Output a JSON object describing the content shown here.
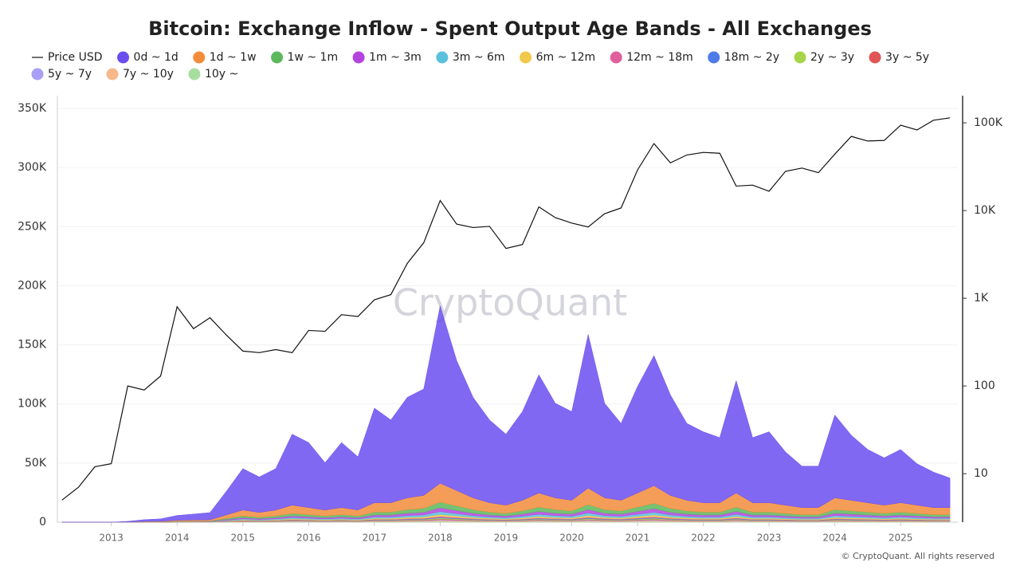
{
  "chart_data": {
    "type": "area",
    "title": "Bitcoin: Exchange Inflow - Spent Output Age Bands - All Exchanges",
    "watermark": "CryptoQuant",
    "credit": "© CryptoQuant. All rights reserved",
    "x": [
      2012.25,
      2012.5,
      2012.75,
      2013,
      2013.25,
      2013.5,
      2013.75,
      2014,
      2014.25,
      2014.5,
      2014.75,
      2015,
      2015.25,
      2015.5,
      2015.75,
      2016,
      2016.25,
      2016.5,
      2016.75,
      2017,
      2017.25,
      2017.5,
      2017.75,
      2018,
      2018.25,
      2018.5,
      2018.75,
      2019,
      2019.25,
      2019.5,
      2019.75,
      2020,
      2020.25,
      2020.5,
      2020.75,
      2021,
      2021.25,
      2021.5,
      2021.75,
      2022,
      2022.25,
      2022.5,
      2022.75,
      2023,
      2023.25,
      2023.5,
      2023.75,
      2024,
      2024.25,
      2024.5,
      2024.75,
      2025,
      2025.25,
      2025.5,
      2025.75
    ],
    "xlim": [
      2012.18,
      2025.87
    ],
    "xticks": [
      2013,
      2014,
      2015,
      2016,
      2017,
      2018,
      2019,
      2020,
      2021,
      2022,
      2023,
      2024,
      2025
    ],
    "ylim": [
      0,
      360800
    ],
    "yticks": [
      0,
      {
        "value": 50000,
        "label": "50K"
      },
      {
        "value": 100000,
        "label": "100K"
      },
      {
        "value": 150000,
        "label": "150K"
      },
      {
        "value": 200000,
        "label": "200K"
      },
      {
        "value": 250000,
        "label": "250K"
      },
      {
        "value": 300000,
        "label": "300K"
      },
      {
        "value": 350000,
        "label": "350K"
      }
    ],
    "y2lim": [
      2.8,
      204000
    ],
    "y2ticks": [
      10,
      100,
      {
        "value": 1000,
        "label": "1K"
      },
      {
        "value": 10000,
        "label": "10K"
      },
      {
        "value": 100000,
        "label": "100K"
      }
    ],
    "y2scale": "log",
    "grid": true,
    "series": [
      {
        "name": "Price USD",
        "type": "line",
        "axis": "y2",
        "color": "#111111",
        "values": [
          5,
          7,
          12,
          13,
          100,
          90,
          130,
          800,
          450,
          600,
          380,
          250,
          240,
          260,
          240,
          430,
          420,
          650,
          620,
          960,
          1100,
          2500,
          4300,
          13000,
          7000,
          6400,
          6600,
          3700,
          4100,
          11000,
          8300,
          7200,
          6500,
          9200,
          10700,
          29000,
          58000,
          35000,
          43000,
          46000,
          45000,
          19000,
          19500,
          16600,
          28000,
          30500,
          27000,
          44000,
          70000,
          62000,
          63000,
          94000,
          83000,
          107000,
          114000
        ]
      },
      {
        "name": "0d ~ 1d",
        "color": "#6b4ef0",
        "values": [
          0,
          0,
          0,
          0,
          500,
          1500,
          2000,
          4000,
          5000,
          6000,
          20000,
          35000,
          30000,
          35000,
          60000,
          55000,
          40000,
          55000,
          45000,
          80000,
          70000,
          85000,
          90000,
          150000,
          110000,
          85000,
          70000,
          60000,
          75000,
          100000,
          80000,
          75000,
          130000,
          80000,
          65000,
          90000,
          110000,
          85000,
          65000,
          60000,
          55000,
          95000,
          55000,
          60000,
          45000,
          35000,
          35000,
          70000,
          55000,
          45000,
          40000,
          45000,
          35000,
          30000,
          25000
        ]
      },
      {
        "name": "1d ~ 1w",
        "color": "#f28c3b",
        "values": [
          0,
          0,
          0,
          0,
          100,
          300,
          400,
          800,
          900,
          1000,
          3000,
          5000,
          4000,
          5000,
          7000,
          6000,
          5000,
          6000,
          5000,
          8000,
          8000,
          10000,
          11000,
          16000,
          13000,
          10000,
          8000,
          7000,
          9000,
          12000,
          10000,
          9000,
          14000,
          10000,
          9000,
          12000,
          15000,
          11000,
          9000,
          8000,
          8000,
          12000,
          8000,
          8000,
          7000,
          6000,
          6000,
          10000,
          9000,
          8000,
          7000,
          8000,
          7000,
          6000,
          6000
        ]
      },
      {
        "name": "1w ~ 1m",
        "color": "#5cb85c",
        "values": [
          0,
          0,
          0,
          0,
          30,
          90,
          120,
          240,
          270,
          300,
          900,
          1500,
          1200,
          1500,
          2100,
          1800,
          1500,
          1800,
          1500,
          2400,
          2400,
          3000,
          3300,
          4800,
          3900,
          3000,
          2400,
          2100,
          2700,
          3600,
          3000,
          2700,
          4200,
          3000,
          2700,
          3600,
          4500,
          3300,
          2700,
          2400,
          2400,
          3600,
          2400,
          2400,
          2100,
          1800,
          1800,
          3000,
          2700,
          2400,
          2100,
          2400,
          2100,
          1800,
          1800
        ]
      },
      {
        "name": "1m ~ 3m",
        "color": "#b444e0",
        "values": [
          0,
          0,
          0,
          0,
          20,
          60,
          80,
          160,
          180,
          200,
          600,
          1000,
          800,
          1000,
          1400,
          1200,
          1000,
          1200,
          1000,
          1600,
          1600,
          2000,
          2200,
          3200,
          2600,
          2000,
          1600,
          1400,
          1800,
          2400,
          2000,
          1800,
          2800,
          2000,
          1800,
          2400,
          3000,
          2200,
          1800,
          1600,
          1600,
          2400,
          1600,
          1600,
          1400,
          1200,
          1200,
          2000,
          1800,
          1600,
          1400,
          1600,
          1400,
          1200,
          1200
        ]
      },
      {
        "name": "3m ~ 6m",
        "color": "#5bc0de",
        "values": [
          0,
          0,
          0,
          0,
          15,
          45,
          60,
          120,
          135,
          150,
          450,
          750,
          600,
          750,
          1050,
          900,
          750,
          900,
          750,
          1200,
          1200,
          1500,
          1650,
          2400,
          1950,
          1500,
          1200,
          1050,
          1350,
          1800,
          1500,
          1350,
          2100,
          1500,
          1350,
          1800,
          2250,
          1650,
          1350,
          1200,
          1200,
          1800,
          1200,
          1200,
          1050,
          900,
          900,
          1500,
          1350,
          1200,
          1050,
          1200,
          1050,
          900,
          900
        ]
      },
      {
        "name": "6m ~ 12m",
        "color": "#f0c94a",
        "values": [
          0,
          0,
          0,
          0,
          10,
          30,
          40,
          80,
          90,
          100,
          300,
          500,
          400,
          500,
          700,
          600,
          500,
          600,
          500,
          800,
          800,
          1000,
          1100,
          1600,
          1300,
          1000,
          800,
          700,
          900,
          1200,
          1000,
          900,
          1400,
          1000,
          900,
          1200,
          1500,
          1100,
          900,
          800,
          800,
          1200,
          800,
          800,
          700,
          600,
          600,
          1000,
          900,
          800,
          700,
          800,
          700,
          600,
          600
        ]
      },
      {
        "name": "12m ~ 18m",
        "color": "#e0609e",
        "values": [
          0,
          0,
          0,
          0,
          5,
          15,
          20,
          40,
          45,
          50,
          150,
          250,
          200,
          250,
          350,
          300,
          250,
          300,
          250,
          400,
          400,
          500,
          550,
          800,
          650,
          500,
          400,
          350,
          450,
          600,
          500,
          450,
          700,
          500,
          450,
          600,
          750,
          550,
          450,
          400,
          400,
          600,
          400,
          400,
          350,
          300,
          300,
          500,
          450,
          400,
          350,
          400,
          350,
          300,
          300
        ]
      },
      {
        "name": "18m ~ 2y",
        "color": "#4f7be8",
        "values": [
          0,
          0,
          0,
          0,
          4,
          12,
          16,
          32,
          36,
          40,
          120,
          200,
          160,
          200,
          280,
          240,
          200,
          240,
          200,
          320,
          320,
          400,
          440,
          640,
          520,
          400,
          320,
          280,
          360,
          480,
          400,
          360,
          560,
          400,
          360,
          480,
          600,
          440,
          360,
          320,
          320,
          480,
          320,
          320,
          280,
          240,
          240,
          400,
          360,
          320,
          280,
          320,
          280,
          240,
          240
        ]
      },
      {
        "name": "2y ~ 3y",
        "color": "#a8d44a",
        "values": [
          0,
          0,
          0,
          0,
          5,
          15,
          20,
          40,
          45,
          50,
          150,
          250,
          200,
          250,
          350,
          300,
          250,
          300,
          250,
          400,
          400,
          500,
          550,
          800,
          650,
          500,
          400,
          350,
          450,
          600,
          500,
          450,
          700,
          500,
          450,
          600,
          750,
          550,
          450,
          400,
          400,
          600,
          400,
          400,
          350,
          300,
          300,
          500,
          450,
          400,
          350,
          400,
          350,
          300,
          300
        ]
      },
      {
        "name": "3y ~ 5y",
        "color": "#e05555",
        "values": [
          0,
          0,
          0,
          0,
          4,
          12,
          16,
          32,
          36,
          40,
          120,
          200,
          160,
          200,
          280,
          240,
          200,
          240,
          200,
          320,
          320,
          400,
          440,
          640,
          520,
          400,
          320,
          280,
          360,
          480,
          400,
          360,
          560,
          400,
          360,
          480,
          600,
          440,
          360,
          320,
          320,
          480,
          320,
          320,
          280,
          240,
          240,
          400,
          360,
          320,
          280,
          320,
          280,
          240,
          240
        ]
      },
      {
        "name": "5y ~ 7y",
        "color": "#a9a0f5",
        "values": [
          0,
          0,
          0,
          0,
          4,
          12,
          16,
          32,
          36,
          40,
          120,
          200,
          160,
          200,
          280,
          240,
          200,
          240,
          200,
          320,
          320,
          400,
          440,
          640,
          520,
          400,
          320,
          280,
          360,
          480,
          400,
          360,
          560,
          400,
          360,
          480,
          600,
          440,
          360,
          320,
          320,
          480,
          320,
          320,
          280,
          240,
          240,
          400,
          360,
          320,
          280,
          320,
          280,
          240,
          240
        ]
      },
      {
        "name": "7y ~ 10y",
        "color": "#f7b98a",
        "values": [
          0,
          0,
          0,
          0,
          5,
          15,
          20,
          40,
          45,
          50,
          150,
          250,
          200,
          250,
          350,
          300,
          250,
          300,
          250,
          400,
          400,
          500,
          550,
          800,
          650,
          500,
          400,
          350,
          450,
          600,
          500,
          450,
          700,
          500,
          450,
          600,
          750,
          550,
          450,
          400,
          400,
          600,
          400,
          400,
          350,
          300,
          300,
          500,
          450,
          400,
          350,
          400,
          350,
          300,
          300
        ]
      },
      {
        "name": "10y ~",
        "color": "#a7dea0",
        "values": [
          0,
          0,
          0,
          0,
          4,
          12,
          16,
          32,
          36,
          40,
          120,
          200,
          160,
          200,
          280,
          240,
          200,
          240,
          200,
          320,
          320,
          400,
          440,
          640,
          520,
          400,
          320,
          280,
          360,
          480,
          400,
          360,
          560,
          400,
          360,
          480,
          600,
          440,
          360,
          320,
          320,
          480,
          320,
          320,
          280,
          240,
          240,
          400,
          360,
          320,
          280,
          320,
          280,
          240,
          240
        ]
      }
    ]
  }
}
